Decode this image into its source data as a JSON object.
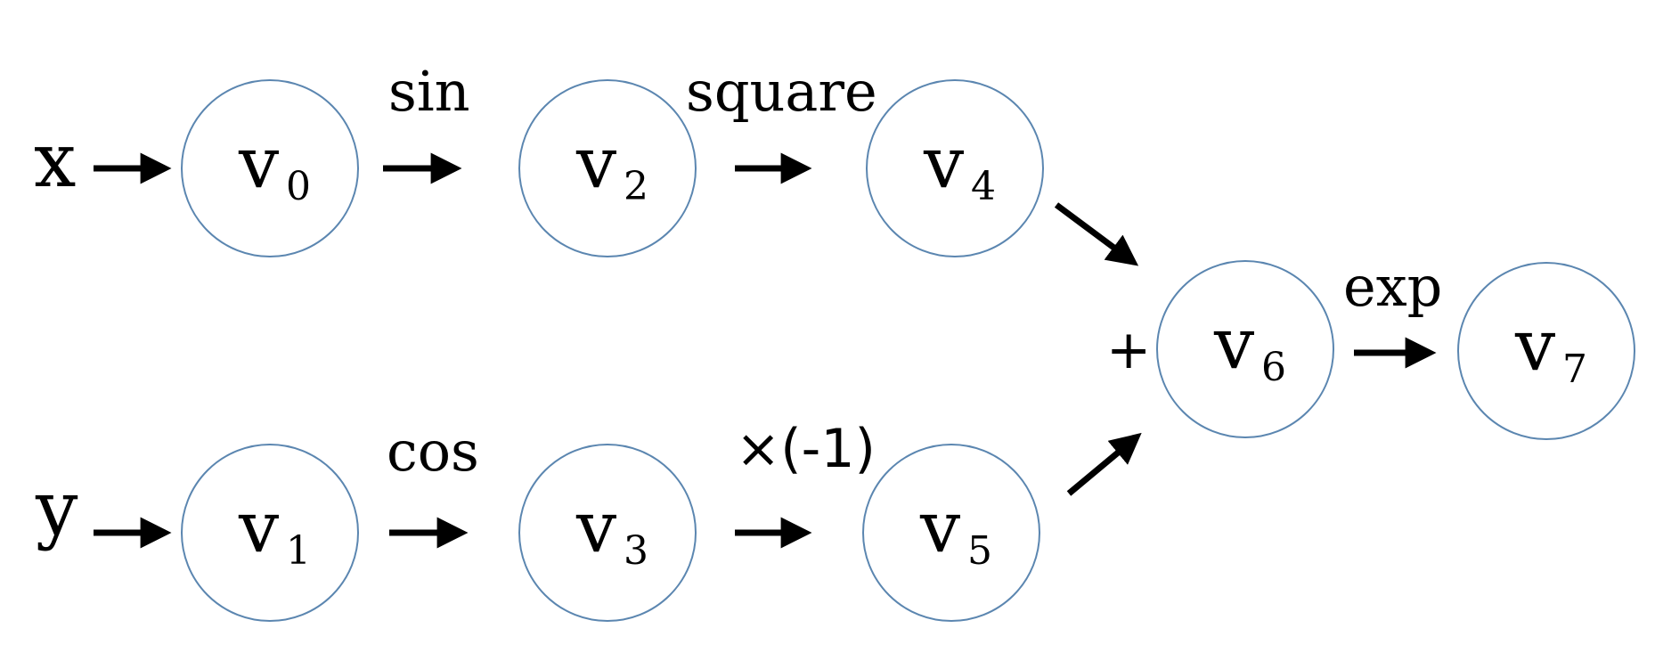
{
  "inputs": {
    "x": "x",
    "y": "y"
  },
  "nodes": [
    {
      "letter": "v",
      "index": "0"
    },
    {
      "letter": "v",
      "index": "1"
    },
    {
      "letter": "v",
      "index": "2"
    },
    {
      "letter": "v",
      "index": "3"
    },
    {
      "letter": "v",
      "index": "4"
    },
    {
      "letter": "v",
      "index": "5"
    },
    {
      "letter": "v",
      "index": "6"
    },
    {
      "letter": "v",
      "index": "7"
    }
  ],
  "operations": {
    "sin": "sin",
    "square": "square",
    "cos": "cos",
    "neg": "×(-1)",
    "plus": "+",
    "exp": "exp"
  },
  "colors": {
    "node_stroke": "#5b86b0",
    "arrow": "#000000",
    "text": "#000000"
  }
}
